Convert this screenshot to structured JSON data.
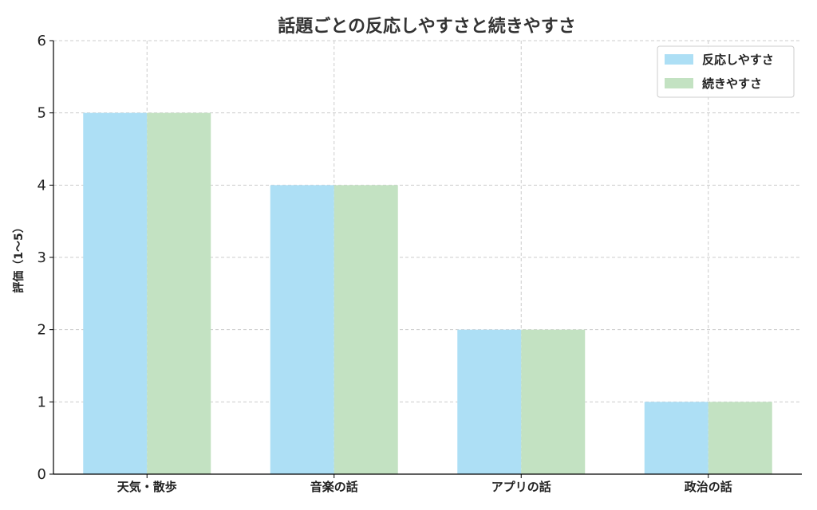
{
  "chart_data": {
    "type": "bar",
    "title": "話題ごとの反応しやすさと続きやすさ",
    "xlabel": "",
    "ylabel": "評価（1〜5）",
    "categories": [
      "天気・散歩",
      "音楽の話",
      "アプリの話",
      "政治の話"
    ],
    "series": [
      {
        "name": "反応しやすさ",
        "values": [
          5,
          4,
          2,
          1
        ],
        "color": "#ADDFF5"
      },
      {
        "name": "続きやすさ",
        "values": [
          5,
          4,
          2,
          1
        ],
        "color": "#C3E2C2"
      }
    ],
    "ylim": [
      0,
      6
    ],
    "yticks": [
      0,
      1,
      2,
      3,
      4,
      5,
      6
    ],
    "grid": true,
    "legend": "top-right"
  }
}
